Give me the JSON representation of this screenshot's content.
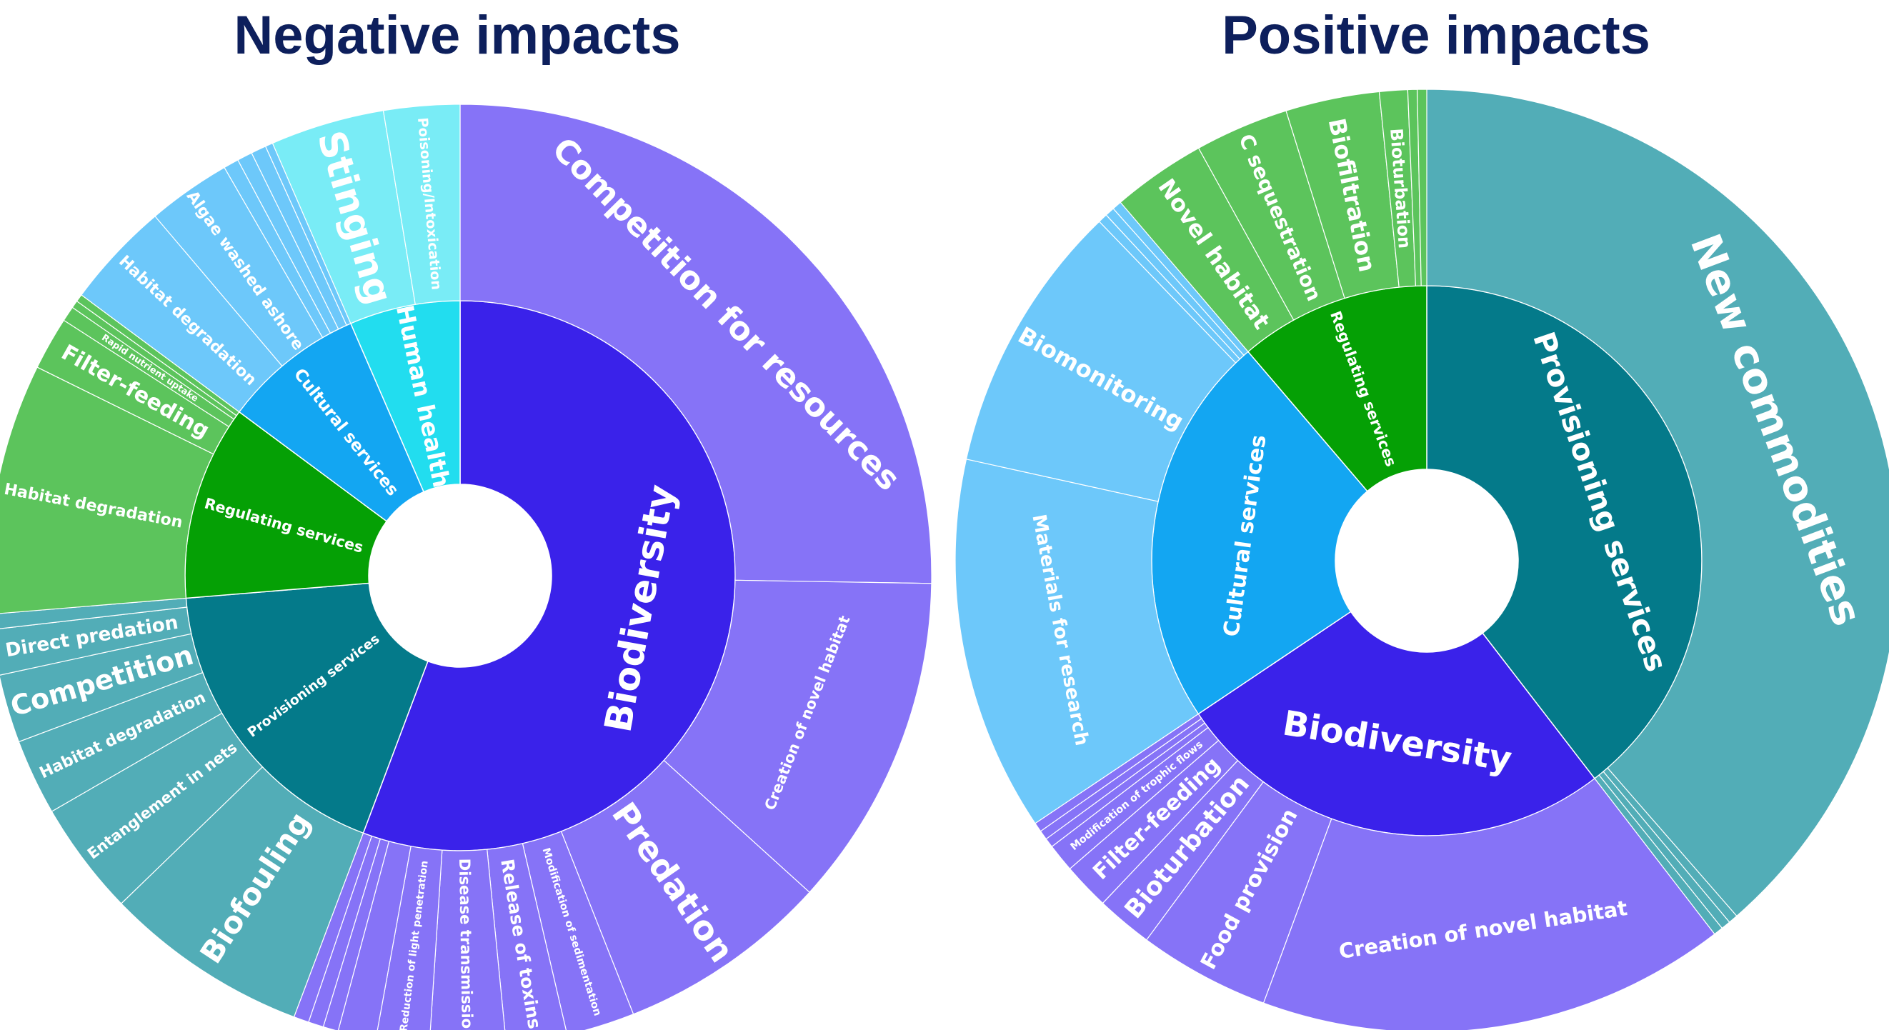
{
  "chart_data": [
    {
      "type": "sunburst",
      "title": "Negative impacts",
      "colors": {
        "Biodiversity": "#3a22ea",
        "Biodiversity_outer": "#8673f7",
        "Provisioning services": "#047a8a",
        "Provisioning services_outer": "#52adb7",
        "Regulating services": "#05a005",
        "Regulating services_outer": "#5cc45c",
        "Cultural services": "#13a6f2",
        "Cultural services_outer": "#6dc8fa",
        "Human health": "#22ddef",
        "Human health_outer": "#79ecf6"
      },
      "categories": [
        {
          "name": "Biodiversity",
          "children": [
            {
              "name": "Competition for resources",
              "value": 97
            },
            {
              "name": "Creation of novel habitat",
              "value": 44
            },
            {
              "name": "Predation",
              "value": 28
            },
            {
              "name": "Modification of sedimentation",
              "value": 9
            },
            {
              "name": "Release of toxins",
              "value": 8
            },
            {
              "name": "Disease transmission",
              "value": 10
            },
            {
              "name": "Reduction of light penetration",
              "value": 7
            },
            {
              "name": "",
              "value": 5
            },
            {
              "name": "",
              "value": 2
            },
            {
              "name": "",
              "value": 2
            },
            {
              "name": "",
              "value": 2
            }
          ]
        },
        {
          "name": "Provisioning services",
          "children": [
            {
              "name": "Biofouling",
              "value": 27
            },
            {
              "name": "Entanglement in nets",
              "value": 15
            },
            {
              "name": "Habitat degradation",
              "value": 10
            },
            {
              "name": "Competition",
              "value": 9
            },
            {
              "name": "Direct predation",
              "value": 6
            },
            {
              "name": "",
              "value": 2
            }
          ]
        },
        {
          "name": "Regulating services",
          "children": [
            {
              "name": "Habitat degradation",
              "value": 33
            },
            {
              "name": "Filter-feeding",
              "value": 7
            },
            {
              "name": "Rapid nutrient uptake",
              "value": 2
            },
            {
              "name": "",
              "value": 1
            },
            {
              "name": "",
              "value": 1
            }
          ]
        },
        {
          "name": "Cultural services",
          "children": [
            {
              "name": "Habitat degradation",
              "value": 14
            },
            {
              "name": "Algae washed ashore",
              "value": 11
            },
            {
              "name": "",
              "value": 2
            },
            {
              "name": "",
              "value": 2
            },
            {
              "name": "",
              "value": 2
            },
            {
              "name": "",
              "value": 1
            }
          ]
        },
        {
          "name": "Human health",
          "children": [
            {
              "name": "Stinging",
              "value": 15
            },
            {
              "name": "Poisoning/Intoxication",
              "value": 10
            }
          ]
        }
      ]
    },
    {
      "type": "sunburst",
      "title": "Positive impacts",
      "colors": {
        "Provisioning services": "#047a8a",
        "Provisioning services_outer": "#52adb7",
        "Biodiversity": "#3a22ea",
        "Biodiversity_outer": "#8673f7",
        "Cultural services": "#13a6f2",
        "Cultural services_outer": "#6dc8fa",
        "Regulating services": "#05a005",
        "Regulating services_outer": "#5cc45c"
      },
      "categories": [
        {
          "name": "Provisioning services",
          "children": [
            {
              "name": "New commodities",
              "value": 120
            },
            {
              "name": "",
              "value": 1
            },
            {
              "name": "",
              "value": 1
            },
            {
              "name": "",
              "value": 1
            }
          ]
        },
        {
          "name": "Biodiversity",
          "children": [
            {
              "name": "Creation of novel habitat",
              "value": 50
            },
            {
              "name": "Food provision",
              "value": 14
            },
            {
              "name": "Bioturbation",
              "value": 6
            },
            {
              "name": "Filter-feeding",
              "value": 5
            },
            {
              "name": "Modification of trophic flows",
              "value": 3
            },
            {
              "name": "",
              "value": 1
            },
            {
              "name": "",
              "value": 1
            },
            {
              "name": "",
              "value": 1
            }
          ]
        },
        {
          "name": "Cultural services",
          "children": [
            {
              "name": "Materials for research",
              "value": 40
            },
            {
              "name": "Biomonitoring",
              "value": 29
            },
            {
              "name": "",
              "value": 1
            },
            {
              "name": "",
              "value": 1
            },
            {
              "name": "",
              "value": 1
            }
          ]
        },
        {
          "name": "Regulating services",
          "children": [
            {
              "name": "Novel habitat",
              "value": 10
            },
            {
              "name": "C sequestration",
              "value": 10
            },
            {
              "name": "Biofiltration",
              "value": 10
            },
            {
              "name": "Bioturbation",
              "value": 3
            },
            {
              "name": "",
              "value": 1
            },
            {
              "name": "",
              "value": 1
            }
          ]
        }
      ]
    }
  ]
}
